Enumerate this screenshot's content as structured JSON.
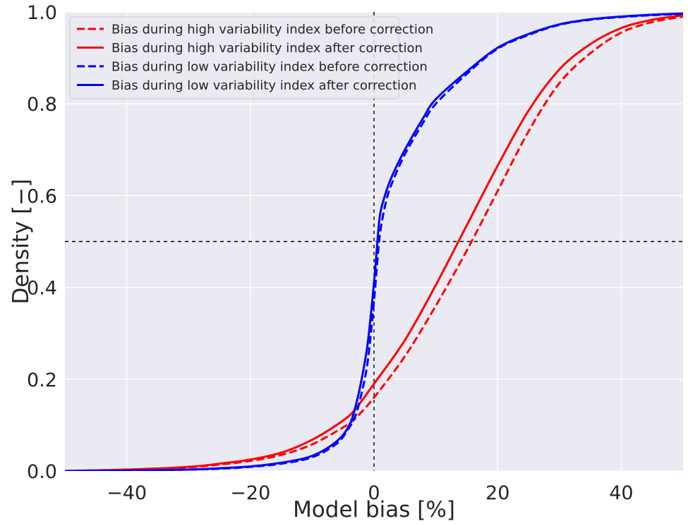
{
  "chart_data": {
    "type": "line",
    "xlabel": "Model bias [%]",
    "ylabel": "Density [−]",
    "xlim": [
      -50,
      50
    ],
    "ylim": [
      0,
      1
    ],
    "xticks": [
      -40,
      -20,
      0,
      20,
      40
    ],
    "xtick_labels": [
      "−40",
      "−20",
      "0",
      "20",
      "40"
    ],
    "yticks": [
      0,
      0.2,
      0.4,
      0.6,
      0.8,
      1.0
    ],
    "ytick_labels": [
      "0.0",
      "0.2",
      "0.4",
      "0.6",
      "0.8",
      "1.0"
    ],
    "grid": true,
    "legend_position": "top-left",
    "reference_lines": [
      {
        "orientation": "vertical",
        "value": 0,
        "style": "dashed",
        "color": "#000000"
      },
      {
        "orientation": "horizontal",
        "value": 0.5,
        "style": "dashed",
        "color": "#000000"
      }
    ],
    "series": [
      {
        "name": "Bias during high variability index before correction",
        "color": "#ff0000",
        "style": "dashed",
        "x": [
          -50,
          -40,
          -30,
          -25,
          -20,
          -15,
          -10,
          -5,
          -3,
          0,
          5,
          10,
          15,
          20,
          25,
          30,
          35,
          40,
          45,
          50
        ],
        "y": [
          0.0,
          0.003,
          0.008,
          0.014,
          0.022,
          0.035,
          0.058,
          0.095,
          0.115,
          0.16,
          0.25,
          0.36,
          0.48,
          0.61,
          0.74,
          0.845,
          0.91,
          0.955,
          0.978,
          0.99
        ]
      },
      {
        "name": "Bias during high variability index after correction",
        "color": "#ff0000",
        "style": "solid",
        "x": [
          -50,
          -40,
          -30,
          -25,
          -20,
          -15,
          -10,
          -5,
          -3,
          0,
          5,
          10,
          15,
          20,
          25,
          30,
          35,
          40,
          45,
          50
        ],
        "y": [
          0.0,
          0.003,
          0.009,
          0.016,
          0.025,
          0.04,
          0.068,
          0.11,
          0.135,
          0.19,
          0.285,
          0.405,
          0.535,
          0.665,
          0.785,
          0.875,
          0.93,
          0.965,
          0.983,
          0.993
        ]
      },
      {
        "name": "Bias during low variability index before correction",
        "color": "#0000ff",
        "style": "dashed",
        "x": [
          -50,
          -40,
          -30,
          -25,
          -20,
          -15,
          -10,
          -6,
          -4,
          -3,
          -2,
          -1,
          0,
          0.5,
          1,
          2,
          3,
          5,
          8,
          10,
          15,
          20,
          25,
          30,
          35,
          40,
          45,
          50
        ],
        "y": [
          0.0,
          0.001,
          0.003,
          0.005,
          0.009,
          0.016,
          0.03,
          0.06,
          0.095,
          0.12,
          0.17,
          0.24,
          0.37,
          0.45,
          0.52,
          0.59,
          0.63,
          0.69,
          0.76,
          0.8,
          0.865,
          0.92,
          0.95,
          0.972,
          0.983,
          0.989,
          0.993,
          0.996
        ]
      },
      {
        "name": "Bias during low variability index after correction",
        "color": "#0000ff",
        "style": "solid",
        "x": [
          -50,
          -40,
          -30,
          -25,
          -20,
          -15,
          -10,
          -6,
          -4,
          -3,
          -2,
          -1,
          0,
          0.5,
          1,
          2,
          3,
          5,
          8,
          10,
          15,
          20,
          25,
          30,
          35,
          40,
          45,
          50
        ],
        "y": [
          0.0,
          0.001,
          0.003,
          0.006,
          0.01,
          0.018,
          0.033,
          0.065,
          0.1,
          0.14,
          0.2,
          0.28,
          0.41,
          0.49,
          0.56,
          0.61,
          0.645,
          0.7,
          0.77,
          0.81,
          0.87,
          0.922,
          0.952,
          0.973,
          0.984,
          0.99,
          0.994,
          0.997
        ]
      }
    ]
  }
}
